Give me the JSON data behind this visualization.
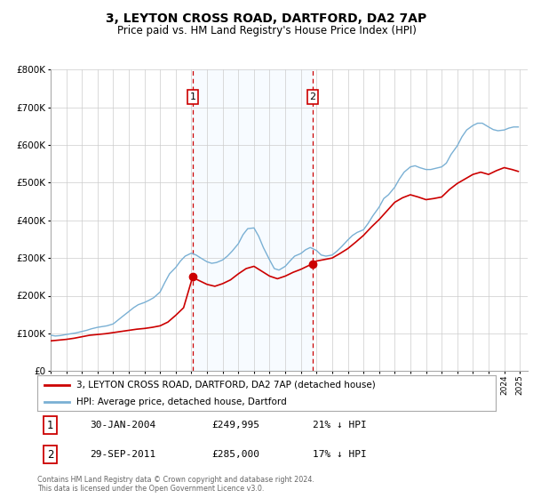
{
  "title": "3, LEYTON CROSS ROAD, DARTFORD, DA2 7AP",
  "subtitle": "Price paid vs. HM Land Registry's House Price Index (HPI)",
  "hpi_label": "HPI: Average price, detached house, Dartford",
  "property_label": "3, LEYTON CROSS ROAD, DARTFORD, DA2 7AP (detached house)",
  "annotation1_date": "30-JAN-2004",
  "annotation1_price": "£249,995",
  "annotation1_hpi": "21% ↓ HPI",
  "annotation1_year": 2004.08,
  "annotation1_value": 249995,
  "annotation2_date": "29-SEP-2011",
  "annotation2_price": "£285,000",
  "annotation2_hpi": "17% ↓ HPI",
  "annotation2_year": 2011.75,
  "annotation2_value": 285000,
  "footer1": "Contains HM Land Registry data © Crown copyright and database right 2024.",
  "footer2": "This data is licensed under the Open Government Licence v3.0.",
  "red_color": "#cc0000",
  "blue_color": "#7ab0d4",
  "bg_shading_color": "#ddeeff",
  "ylim": [
    0,
    800000
  ],
  "xlim_start": 1995.0,
  "xlim_end": 2025.5,
  "yticks": [
    0,
    100000,
    200000,
    300000,
    400000,
    500000,
    600000,
    700000,
    800000
  ],
  "ytick_labels": [
    "£0",
    "£100K",
    "£200K",
    "£300K",
    "£400K",
    "£500K",
    "£600K",
    "£700K",
    "£800K"
  ],
  "xticks": [
    1995,
    1996,
    1997,
    1998,
    1999,
    2000,
    2001,
    2002,
    2003,
    2004,
    2005,
    2006,
    2007,
    2008,
    2009,
    2010,
    2011,
    2012,
    2013,
    2014,
    2015,
    2016,
    2017,
    2018,
    2019,
    2020,
    2021,
    2022,
    2023,
    2024,
    2025
  ],
  "hpi_data": [
    [
      1995.0,
      95000
    ],
    [
      1995.3,
      93000
    ],
    [
      1995.6,
      94000
    ],
    [
      1996.0,
      97000
    ],
    [
      1996.3,
      99000
    ],
    [
      1996.6,
      101000
    ],
    [
      1997.0,
      105000
    ],
    [
      1997.3,
      108000
    ],
    [
      1997.6,
      112000
    ],
    [
      1998.0,
      116000
    ],
    [
      1998.3,
      118000
    ],
    [
      1998.6,
      120000
    ],
    [
      1999.0,
      125000
    ],
    [
      1999.3,
      135000
    ],
    [
      1999.6,
      145000
    ],
    [
      2000.0,
      158000
    ],
    [
      2000.3,
      168000
    ],
    [
      2000.6,
      176000
    ],
    [
      2001.0,
      182000
    ],
    [
      2001.3,
      188000
    ],
    [
      2001.6,
      195000
    ],
    [
      2002.0,
      210000
    ],
    [
      2002.3,
      235000
    ],
    [
      2002.6,
      258000
    ],
    [
      2003.0,
      275000
    ],
    [
      2003.3,
      292000
    ],
    [
      2003.6,
      305000
    ],
    [
      2004.0,
      313000
    ],
    [
      2004.3,
      308000
    ],
    [
      2004.6,
      300000
    ],
    [
      2005.0,
      290000
    ],
    [
      2005.3,
      286000
    ],
    [
      2005.6,
      288000
    ],
    [
      2006.0,
      295000
    ],
    [
      2006.3,
      305000
    ],
    [
      2006.6,
      318000
    ],
    [
      2007.0,
      338000
    ],
    [
      2007.3,
      362000
    ],
    [
      2007.6,
      378000
    ],
    [
      2008.0,
      380000
    ],
    [
      2008.3,
      358000
    ],
    [
      2008.6,
      328000
    ],
    [
      2009.0,
      295000
    ],
    [
      2009.3,
      272000
    ],
    [
      2009.6,
      268000
    ],
    [
      2010.0,
      278000
    ],
    [
      2010.3,
      292000
    ],
    [
      2010.6,
      305000
    ],
    [
      2011.0,
      312000
    ],
    [
      2011.3,
      322000
    ],
    [
      2011.6,
      328000
    ],
    [
      2012.0,
      320000
    ],
    [
      2012.3,
      308000
    ],
    [
      2012.6,
      305000
    ],
    [
      2013.0,
      308000
    ],
    [
      2013.3,
      318000
    ],
    [
      2013.6,
      330000
    ],
    [
      2014.0,
      348000
    ],
    [
      2014.3,
      360000
    ],
    [
      2014.6,
      368000
    ],
    [
      2015.0,
      375000
    ],
    [
      2015.3,
      392000
    ],
    [
      2015.6,
      412000
    ],
    [
      2016.0,
      435000
    ],
    [
      2016.3,
      458000
    ],
    [
      2016.6,
      468000
    ],
    [
      2017.0,
      488000
    ],
    [
      2017.3,
      510000
    ],
    [
      2017.6,
      528000
    ],
    [
      2018.0,
      542000
    ],
    [
      2018.3,
      545000
    ],
    [
      2018.6,
      540000
    ],
    [
      2019.0,
      535000
    ],
    [
      2019.3,
      535000
    ],
    [
      2019.6,
      538000
    ],
    [
      2020.0,
      542000
    ],
    [
      2020.3,
      552000
    ],
    [
      2020.6,
      575000
    ],
    [
      2021.0,
      598000
    ],
    [
      2021.3,
      622000
    ],
    [
      2021.6,
      640000
    ],
    [
      2022.0,
      652000
    ],
    [
      2022.3,
      658000
    ],
    [
      2022.6,
      658000
    ],
    [
      2023.0,
      648000
    ],
    [
      2023.3,
      641000
    ],
    [
      2023.6,
      638000
    ],
    [
      2024.0,
      640000
    ],
    [
      2024.3,
      645000
    ],
    [
      2024.6,
      648000
    ],
    [
      2024.9,
      648000
    ]
  ],
  "property_data": [
    [
      1995.0,
      80000
    ],
    [
      1995.5,
      82000
    ],
    [
      1996.0,
      84000
    ],
    [
      1996.5,
      87000
    ],
    [
      1997.0,
      91000
    ],
    [
      1997.5,
      95000
    ],
    [
      1998.0,
      97000
    ],
    [
      1998.5,
      99000
    ],
    [
      1999.0,
      102000
    ],
    [
      1999.5,
      105000
    ],
    [
      2000.0,
      108000
    ],
    [
      2000.5,
      111000
    ],
    [
      2001.0,
      113000
    ],
    [
      2001.5,
      116000
    ],
    [
      2002.0,
      120000
    ],
    [
      2002.5,
      130000
    ],
    [
      2003.0,
      148000
    ],
    [
      2003.5,
      168000
    ],
    [
      2004.08,
      249995
    ],
    [
      2004.3,
      244000
    ],
    [
      2004.6,
      238000
    ],
    [
      2005.0,
      230000
    ],
    [
      2005.5,
      225000
    ],
    [
      2006.0,
      232000
    ],
    [
      2006.5,
      242000
    ],
    [
      2007.0,
      258000
    ],
    [
      2007.5,
      272000
    ],
    [
      2008.0,
      278000
    ],
    [
      2008.5,
      265000
    ],
    [
      2009.0,
      252000
    ],
    [
      2009.5,
      245000
    ],
    [
      2010.0,
      252000
    ],
    [
      2010.5,
      262000
    ],
    [
      2011.0,
      270000
    ],
    [
      2011.75,
      285000
    ],
    [
      2012.0,
      292000
    ],
    [
      2012.5,
      296000
    ],
    [
      2013.0,
      300000
    ],
    [
      2013.5,
      312000
    ],
    [
      2014.0,
      325000
    ],
    [
      2014.5,
      342000
    ],
    [
      2015.0,
      360000
    ],
    [
      2015.5,
      382000
    ],
    [
      2016.0,
      402000
    ],
    [
      2016.5,
      425000
    ],
    [
      2017.0,
      448000
    ],
    [
      2017.5,
      460000
    ],
    [
      2018.0,
      468000
    ],
    [
      2018.5,
      462000
    ],
    [
      2019.0,
      455000
    ],
    [
      2019.5,
      458000
    ],
    [
      2020.0,
      462000
    ],
    [
      2020.5,
      482000
    ],
    [
      2021.0,
      498000
    ],
    [
      2021.5,
      510000
    ],
    [
      2022.0,
      522000
    ],
    [
      2022.5,
      528000
    ],
    [
      2023.0,
      522000
    ],
    [
      2023.5,
      532000
    ],
    [
      2024.0,
      540000
    ],
    [
      2024.5,
      535000
    ],
    [
      2024.9,
      530000
    ]
  ]
}
